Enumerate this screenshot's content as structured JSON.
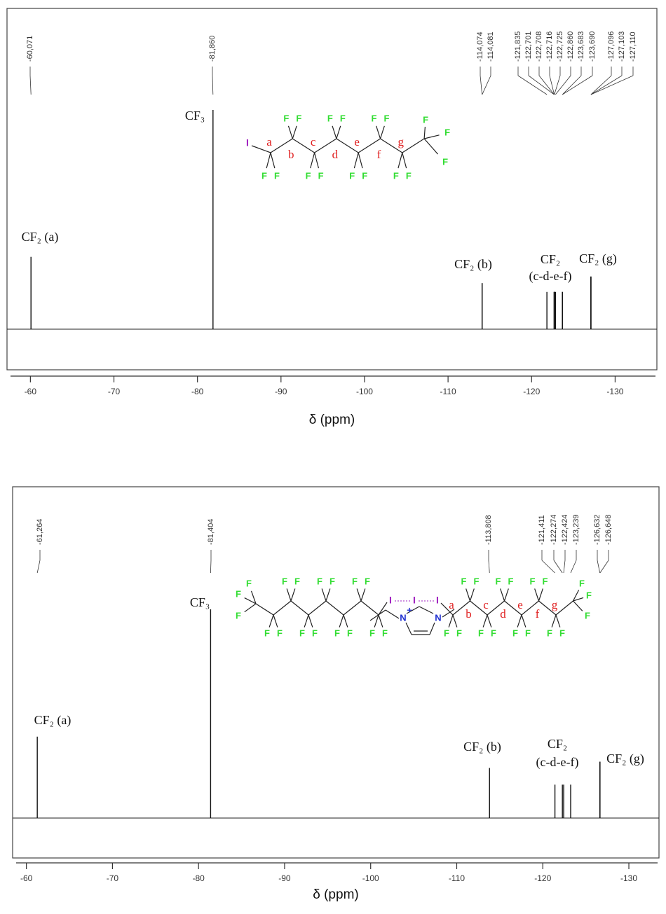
{
  "chart_data": [
    {
      "type": "nmr",
      "xlabel": "δ (ppm)",
      "xlim": [
        -57.2,
        -135
      ],
      "xticks": [
        -60,
        -70,
        -80,
        -90,
        -100,
        -110,
        -120,
        -130
      ],
      "x": [
        -60.071,
        -81.86,
        -114.074,
        -114.081,
        -121.835,
        -122.701,
        -122.708,
        -122.716,
        -122.725,
        -122.86,
        -123.683,
        -123.69,
        -127.096,
        -127.103,
        -127.11
      ],
      "values": [
        33,
        100,
        21,
        21,
        17,
        17,
        17,
        17,
        17,
        17,
        17,
        17,
        24,
        24,
        24
      ],
      "peak_labels": [
        "-60,071",
        "-81,860",
        "-114,074",
        "-114,081",
        "-121,835",
        "-122,701",
        "-122,708",
        "-122,716",
        "-122,725",
        "-122,860",
        "-123,683",
        "-123,690",
        "-127,096",
        "-127,103",
        "-127,110"
      ],
      "annotations": [
        "CF₃",
        "CF₂ (a)",
        "CF₂ (b)",
        "CF₂",
        "(c-d-e-f)",
        "CF₂ (g)"
      ],
      "molecule": {
        "iodine": "I",
        "fluorine": "F",
        "carbon_labels": [
          "a",
          "b",
          "c",
          "d",
          "e",
          "f",
          "g"
        ]
      }
    },
    {
      "type": "nmr",
      "xlabel": "δ (ppm)",
      "xlim": [
        -58.4,
        -133.5
      ],
      "xticks": [
        -60,
        -70,
        -80,
        -90,
        -100,
        -110,
        -120,
        -130
      ],
      "x": [
        -61.264,
        -81.404,
        -113.808,
        -121.411,
        -122.274,
        -122.424,
        -123.239,
        -126.632,
        -126.648
      ],
      "values": [
        39,
        100,
        24,
        16,
        16,
        16,
        16,
        27,
        27
      ],
      "peak_labels": [
        "-61,264",
        "-81,404",
        "-113,808",
        "-121,411",
        "-122,274",
        "-122,424",
        "-123,239",
        "-126,632",
        "-126,648"
      ],
      "annotations": [
        "CF₃",
        "CF₂ (a)",
        "CF₂ (b)",
        "CF₂",
        "(c-d-e-f)",
        "CF₂ (g)"
      ],
      "molecule": {
        "iodine": "I",
        "fluorine": "F",
        "carbon_labels": [
          "a",
          "b",
          "c",
          "d",
          "e",
          "f",
          "g"
        ],
        "nitrogen": "N",
        "charge": "+"
      }
    }
  ]
}
